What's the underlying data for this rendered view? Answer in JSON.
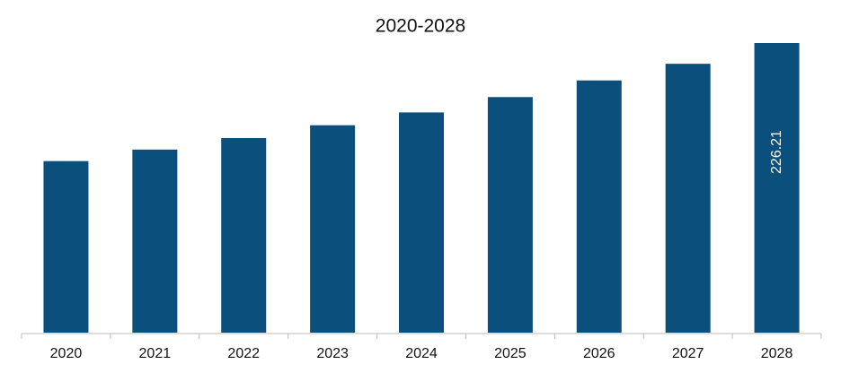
{
  "chart_data": {
    "type": "bar",
    "title": "2020-2028",
    "categories": [
      "2020",
      "2021",
      "2022",
      "2023",
      "2024",
      "2025",
      "2026",
      "2027",
      "2028"
    ],
    "values": [
      134,
      143,
      152,
      162,
      172,
      184,
      197,
      210,
      226.21
    ],
    "value_labels": [
      null,
      null,
      null,
      null,
      null,
      null,
      null,
      null,
      "226.21"
    ],
    "color": "#0b4f7c"
  }
}
